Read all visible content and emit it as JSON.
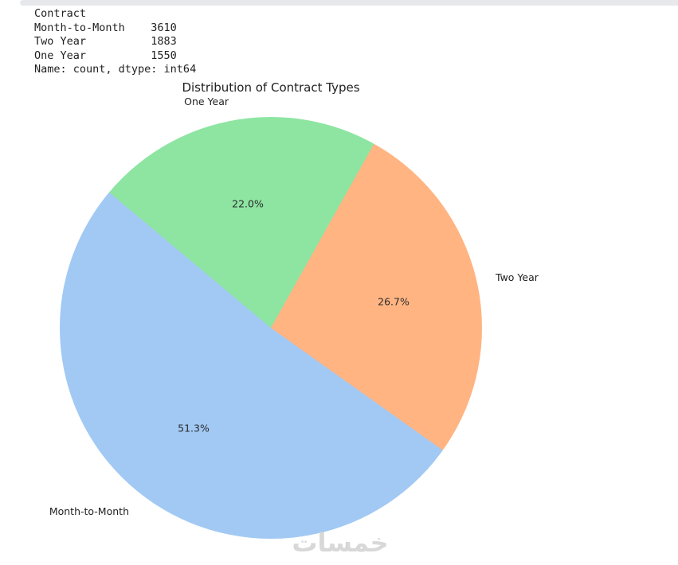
{
  "panel": {
    "top_edge_color": "#e6e8eb"
  },
  "console": {
    "header": "Contract",
    "rows": [
      {
        "label": "Month-to-Month",
        "count": 3610
      },
      {
        "label": "Two Year",
        "count": 1883
      },
      {
        "label": "One Year",
        "count": 1550
      }
    ],
    "footer": "Name: count, dtype: int64",
    "text_color": "#212121"
  },
  "chart_data": {
    "type": "pie",
    "title": "Distribution of Contract Types",
    "categories": [
      "Month-to-Month",
      "Two Year",
      "One Year"
    ],
    "values": [
      3610,
      1883,
      1550
    ],
    "slices": [
      {
        "label": "Month-to-Month",
        "value": 3610,
        "pct_label": "51.3%",
        "color": "#a1c9f4"
      },
      {
        "label": "Two Year",
        "value": 1883,
        "pct_label": "26.7%",
        "color": "#ffb482"
      },
      {
        "label": "One Year",
        "value": 1550,
        "pct_label": "22.0%",
        "color": "#8de5a1"
      }
    ],
    "start_angle": 140,
    "direction": "counterclockwise",
    "legend": "none",
    "grid": "off"
  },
  "watermark": {
    "text": "خمسات",
    "color": "#d6d6d6"
  }
}
